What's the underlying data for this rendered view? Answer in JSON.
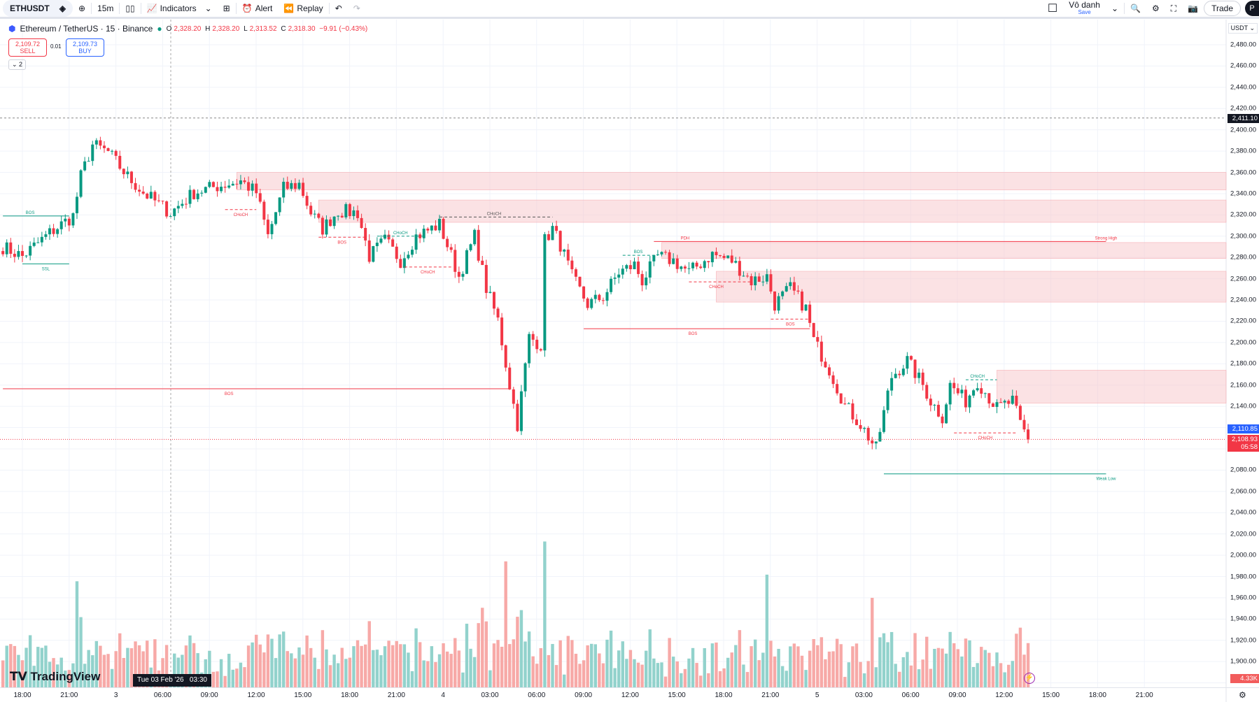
{
  "toolbar": {
    "symbol": "ETHUSDT",
    "interval": "15m",
    "indicators": "Indicators",
    "alert": "Alert",
    "replay": "Replay",
    "layout_name": "Vô danh",
    "save": "Save",
    "trade": "Trade",
    "avatar": "P"
  },
  "legend": {
    "title": "Ethereum / TetherUS · 15 · Binance",
    "o_label": "O",
    "o": "2,328.20",
    "h_label": "H",
    "h": "2,328.20",
    "l_label": "L",
    "l": "2,313.52",
    "c_label": "C",
    "c": "2,318.30",
    "change": "−9.91 (−0.43%)"
  },
  "trade_panel": {
    "sell_price": "2,109.72",
    "sell_label": "SELL",
    "spread": "0.01",
    "buy_price": "2,109.73",
    "buy_label": "BUY",
    "collapse": "2"
  },
  "price_axis": {
    "currency": "USDT",
    "ticks": [
      "2,480.00",
      "2,460.00",
      "2,440.00",
      "2,420.00",
      "2,400.00",
      "2,380.00",
      "2,360.00",
      "2,340.00",
      "2,320.00",
      "2,300.00",
      "2,280.00",
      "2,260.00",
      "2,240.00",
      "2,220.00",
      "2,200.00",
      "2,180.00",
      "2,160.00",
      "2,140.00",
      "2,080.00",
      "2,060.00",
      "2,040.00",
      "2,020.00",
      "2,000.00",
      "1,980.00",
      "1,960.00",
      "1,940.00",
      "1,920.00",
      "1,900.00"
    ],
    "crosshair_price": "2,411.10",
    "bid_price": "2,110.85",
    "last_price": "2,108.93",
    "countdown": "05:58",
    "volume": "4.33K"
  },
  "time_axis": {
    "ticks": [
      "18:00",
      "21:00",
      "3",
      "06:00",
      "09:00",
      "12:00",
      "15:00",
      "18:00",
      "21:00",
      "4",
      "03:00",
      "06:00",
      "09:00",
      "12:00",
      "15:00",
      "18:00",
      "21:00",
      "5",
      "03:00",
      "06:00",
      "09:00",
      "12:00",
      "15:00",
      "18:00",
      "21:00"
    ],
    "crosshair_time": "Tue 03 Feb '26   03:30"
  },
  "logo": "TradingView",
  "colors": {
    "up": "#089981",
    "down": "#f23645",
    "zone": "#f7c5c9",
    "bid": "#2962ff"
  },
  "chart_data": {
    "type": "candlestick",
    "symbol": "ETHUSDT",
    "interval_minutes": 15,
    "close_waypoints": [
      [
        -5,
        2290
      ],
      [
        0,
        2281
      ],
      [
        7,
        2303
      ],
      [
        13,
        2319
      ],
      [
        15,
        2356
      ],
      [
        18,
        2386
      ],
      [
        22,
        2379
      ],
      [
        27,
        2356
      ],
      [
        31,
        2341
      ],
      [
        38,
        2322
      ],
      [
        44,
        2341
      ],
      [
        50,
        2347
      ],
      [
        56,
        2352
      ],
      [
        60,
        2341
      ],
      [
        63,
        2300
      ],
      [
        67,
        2345
      ],
      [
        71,
        2349
      ],
      [
        74,
        2322
      ],
      [
        77,
        2307
      ],
      [
        81,
        2324
      ],
      [
        86,
        2322
      ],
      [
        89,
        2281
      ],
      [
        93,
        2296
      ],
      [
        97,
        2277
      ],
      [
        101,
        2300
      ],
      [
        107,
        2311
      ],
      [
        112,
        2262
      ],
      [
        116,
        2300
      ],
      [
        119,
        2251
      ],
      [
        122,
        2221
      ],
      [
        125,
        2160
      ],
      [
        127,
        2123
      ],
      [
        130,
        2205
      ],
      [
        133,
        2198
      ],
      [
        134,
        2296
      ],
      [
        136,
        2307
      ],
      [
        138,
        2292
      ],
      [
        141,
        2262
      ],
      [
        145,
        2236
      ],
      [
        149,
        2243
      ],
      [
        153,
        2266
      ],
      [
        157,
        2273
      ],
      [
        159,
        2258
      ],
      [
        163,
        2281
      ],
      [
        167,
        2277
      ],
      [
        171,
        2266
      ],
      [
        177,
        2283
      ],
      [
        182,
        2277
      ],
      [
        187,
        2258
      ],
      [
        191,
        2262
      ],
      [
        193,
        2236
      ],
      [
        197,
        2251
      ],
      [
        201,
        2232
      ],
      [
        203,
        2202
      ],
      [
        207,
        2175
      ],
      [
        211,
        2141
      ],
      [
        215,
        2123
      ],
      [
        219,
        2100
      ],
      [
        223,
        2168
      ],
      [
        227,
        2183
      ],
      [
        231,
        2160
      ],
      [
        233,
        2145
      ],
      [
        236,
        2130
      ],
      [
        238,
        2160
      ],
      [
        242,
        2145
      ],
      [
        245,
        2164
      ],
      [
        250,
        2138
      ],
      [
        254,
        2145
      ],
      [
        256,
        2123
      ],
      [
        258,
        2109
      ]
    ],
    "volume_spikes_k": [
      [
        14,
        32
      ],
      [
        118,
        24
      ],
      [
        124,
        38
      ],
      [
        134,
        44
      ],
      [
        191,
        34
      ],
      [
        218,
        27
      ],
      [
        256,
        18
      ]
    ],
    "zones": [
      [
        55,
        "axis",
        2360,
        2343.5
      ],
      [
        76,
        "axis",
        2334,
        2313
      ],
      [
        164,
        "axis",
        2294,
        2279
      ],
      [
        178,
        "axis",
        2267,
        2238
      ],
      [
        250,
        "axis",
        2174,
        2143
      ]
    ],
    "levels": [
      {
        "from": -5,
        "to": 125,
        "price": 2156.5,
        "color": "#f23645",
        "style": "solid",
        "label": "BOS",
        "at": 53,
        "pos": "below"
      },
      {
        "from": 144,
        "to": 202,
        "price": 2213,
        "color": "#f23645",
        "style": "solid",
        "label": "BOS",
        "at": 172,
        "pos": "below"
      },
      {
        "from": 162,
        "to": 278,
        "price": 2295,
        "color": "#f23645",
        "style": "solid",
        "label": "PDH",
        "at": 170,
        "pos": "above"
      },
      {
        "from": 277,
        "to": 278,
        "price": 2295,
        "color": "#f23645",
        "style": "solid",
        "label": "Strong High",
        "at": 278,
        "pos": "above"
      },
      {
        "from": 221,
        "to": 278,
        "price": 2076.5,
        "color": "#089981",
        "style": "solid",
        "label": "Weak Low",
        "at": 278,
        "pos": "below"
      },
      {
        "from": -5,
        "to": 12,
        "price": 2319,
        "color": "#089981",
        "style": "solid",
        "label": "BOS",
        "at": 2,
        "pos": "above"
      },
      {
        "from": 0,
        "to": 12,
        "price": 2274,
        "color": "#089981",
        "style": "solid",
        "label": "SSL",
        "at": 6,
        "pos": "below"
      },
      {
        "from": 52,
        "to": 60,
        "price": 2325,
        "color": "#f23645",
        "style": "dash",
        "label": "CHoCH",
        "at": 56,
        "pos": "below"
      },
      {
        "from": 76,
        "to": 88,
        "price": 2299,
        "color": "#f23645",
        "style": "dash",
        "label": "BOS",
        "at": 82,
        "pos": "below"
      },
      {
        "from": 91,
        "to": 103,
        "price": 2300,
        "color": "#089981",
        "style": "dash",
        "label": "CHoCH",
        "at": 97,
        "pos": "above"
      },
      {
        "from": 98,
        "to": 110,
        "price": 2271,
        "color": "#f23645",
        "style": "dash",
        "label": "CHoCH",
        "at": 104,
        "pos": "below"
      },
      {
        "from": 107,
        "to": 136,
        "price": 2318,
        "color": "#555",
        "style": "dash",
        "label": "CHoCH",
        "at": 121,
        "pos": "above"
      },
      {
        "from": 154,
        "to": 163,
        "price": 2282,
        "color": "#089981",
        "style": "dash",
        "label": "BOS",
        "at": 158,
        "pos": "above"
      },
      {
        "from": 171,
        "to": 187,
        "price": 2257,
        "color": "#f23645",
        "style": "dash",
        "label": "CHoCH",
        "at": 178,
        "pos": "below"
      },
      {
        "from": 192,
        "to": 202,
        "price": 2222,
        "color": "#f23645",
        "style": "dash",
        "label": "BOS",
        "at": 197,
        "pos": "below"
      },
      {
        "from": 242,
        "to": 250,
        "price": 2165,
        "color": "#089981",
        "style": "dash",
        "label": "CHoCH",
        "at": 245,
        "pos": "above"
      },
      {
        "from": 239,
        "to": 255,
        "price": 2115,
        "color": "#f23645",
        "style": "dash",
        "label": "CHoCH",
        "at": 247,
        "pos": "below"
      }
    ]
  }
}
